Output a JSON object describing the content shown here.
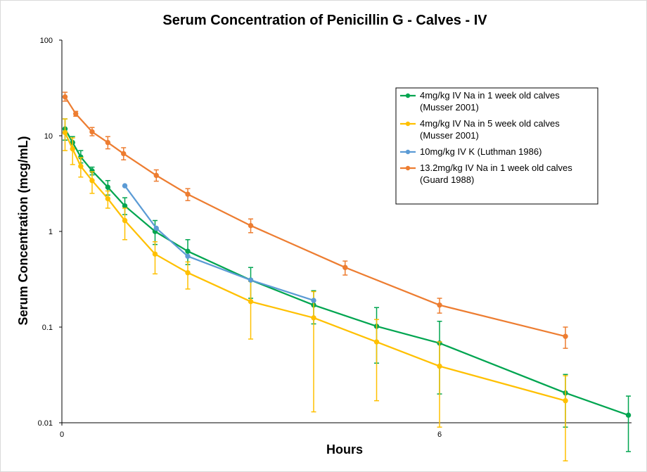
{
  "chart_data": {
    "type": "line",
    "title": "Serum Concentration of Penicillin  G - Calves - IV",
    "xlabel": "Hours",
    "ylabel": "Serum Concentration (mcg/mL)",
    "xlim": [
      0,
      9.05
    ],
    "ylim": [
      0.01,
      100
    ],
    "yscale": "log",
    "x_ticks": [
      {
        "value": 0,
        "label": "0"
      },
      {
        "value": 6,
        "label": "6"
      }
    ],
    "y_ticks": [
      {
        "value": 0.01,
        "label": "0.01"
      },
      {
        "value": 0.1,
        "label": "0.1"
      },
      {
        "value": 1,
        "label": "1"
      },
      {
        "value": 10,
        "label": "10"
      },
      {
        "value": 100,
        "label": "100"
      }
    ],
    "grid": false,
    "legend_position": "top-right",
    "series": [
      {
        "name": "4mg/kg IV Na in 1 week old calves (Musser 2001)",
        "legend_lines": [
          "4mg/kg IV Na in 1 week old calves",
          "(Musser 2001)"
        ],
        "color": "#00a550",
        "points": [
          {
            "x": 0.05,
            "y": 11.8,
            "lo": 9.0,
            "hi": 15.0
          },
          {
            "x": 0.17,
            "y": 8.5,
            "lo": 7.3,
            "hi": 9.8
          },
          {
            "x": 0.3,
            "y": 6.0,
            "lo": 5.2,
            "hi": 7.0
          },
          {
            "x": 0.48,
            "y": 4.3,
            "lo": 3.9,
            "hi": 4.7
          },
          {
            "x": 0.73,
            "y": 2.9,
            "lo": 2.4,
            "hi": 3.4
          },
          {
            "x": 1.0,
            "y": 1.85,
            "lo": 1.5,
            "hi": 2.25
          },
          {
            "x": 1.48,
            "y": 1.0,
            "lo": 0.73,
            "hi": 1.3
          },
          {
            "x": 2.0,
            "y": 0.62,
            "lo": 0.45,
            "hi": 0.82
          },
          {
            "x": 3.0,
            "y": 0.31,
            "lo": 0.2,
            "hi": 0.42
          },
          {
            "x": 4.0,
            "y": 0.17,
            "lo": 0.108,
            "hi": 0.24
          },
          {
            "x": 5.0,
            "y": 0.102,
            "lo": 0.042,
            "hi": 0.16
          },
          {
            "x": 6.0,
            "y": 0.068,
            "lo": 0.02,
            "hi": 0.115
          },
          {
            "x": 8.0,
            "y": 0.0205,
            "lo": 0.009,
            "hi": 0.032
          },
          {
            "x": 9.0,
            "y": 0.012,
            "lo": 0.005,
            "hi": 0.019
          }
        ]
      },
      {
        "name": "4mg/kg IV Na in 5 week old calves (Musser 2001)",
        "legend_lines": [
          "4mg/kg IV Na in 5 week old calves",
          "(Musser 2001)"
        ],
        "color": "#ffc000",
        "points": [
          {
            "x": 0.05,
            "y": 10.8,
            "lo": 7.0,
            "hi": 15.0
          },
          {
            "x": 0.17,
            "y": 7.3,
            "lo": 5.0,
            "hi": 9.5
          },
          {
            "x": 0.3,
            "y": 4.8,
            "lo": 3.7,
            "hi": 5.9
          },
          {
            "x": 0.48,
            "y": 3.4,
            "lo": 2.5,
            "hi": 4.2
          },
          {
            "x": 0.73,
            "y": 2.2,
            "lo": 1.75,
            "hi": 2.65
          },
          {
            "x": 1.0,
            "y": 1.3,
            "lo": 0.82,
            "hi": 1.75
          },
          {
            "x": 1.48,
            "y": 0.58,
            "lo": 0.36,
            "hi": 0.78
          },
          {
            "x": 2.0,
            "y": 0.37,
            "lo": 0.25,
            "hi": 0.48
          },
          {
            "x": 3.0,
            "y": 0.185,
            "lo": 0.075,
            "hi": 0.3
          },
          {
            "x": 4.0,
            "y": 0.125,
            "lo": 0.013,
            "hi": 0.235
          },
          {
            "x": 5.0,
            "y": 0.07,
            "lo": 0.017,
            "hi": 0.12
          },
          {
            "x": 6.0,
            "y": 0.039,
            "lo": 0.009,
            "hi": 0.07
          },
          {
            "x": 8.0,
            "y": 0.017,
            "lo": 0.004,
            "hi": 0.031
          }
        ]
      },
      {
        "name": "10mg/kg IV K (Luthman 1986)",
        "legend_lines": [
          "10mg/kg IV K (Luthman 1986)"
        ],
        "color": "#5b9bd5",
        "points": [
          {
            "x": 1.0,
            "y": 3.0
          },
          {
            "x": 1.5,
            "y": 1.08
          },
          {
            "x": 2.0,
            "y": 0.55
          },
          {
            "x": 3.0,
            "y": 0.31
          },
          {
            "x": 4.0,
            "y": 0.19
          }
        ]
      },
      {
        "name": "13.2mg/kg IV Na in 1 week old calves (Guard 1988)",
        "legend_lines": [
          "13.2mg/kg IV Na in 1 week old calves",
          "(Guard 1988)"
        ],
        "color": "#ed7d31",
        "points": [
          {
            "x": 0.05,
            "y": 25.5,
            "lo": 23.0,
            "hi": 28.5
          },
          {
            "x": 0.22,
            "y": 17.0,
            "lo": 16.0,
            "hi": 18.0
          },
          {
            "x": 0.48,
            "y": 11.0,
            "lo": 10.0,
            "hi": 12.2
          },
          {
            "x": 0.73,
            "y": 8.5,
            "lo": 7.3,
            "hi": 9.8
          },
          {
            "x": 0.98,
            "y": 6.5,
            "lo": 5.6,
            "hi": 7.5
          },
          {
            "x": 1.5,
            "y": 3.85,
            "lo": 3.35,
            "hi": 4.4
          },
          {
            "x": 2.0,
            "y": 2.45,
            "lo": 2.1,
            "hi": 2.8
          },
          {
            "x": 3.0,
            "y": 1.15,
            "lo": 0.97,
            "hi": 1.35
          },
          {
            "x": 4.5,
            "y": 0.42,
            "lo": 0.35,
            "hi": 0.49
          },
          {
            "x": 6.0,
            "y": 0.17,
            "lo": 0.14,
            "hi": 0.2
          },
          {
            "x": 8.0,
            "y": 0.08,
            "lo": 0.06,
            "hi": 0.1
          }
        ]
      }
    ]
  }
}
